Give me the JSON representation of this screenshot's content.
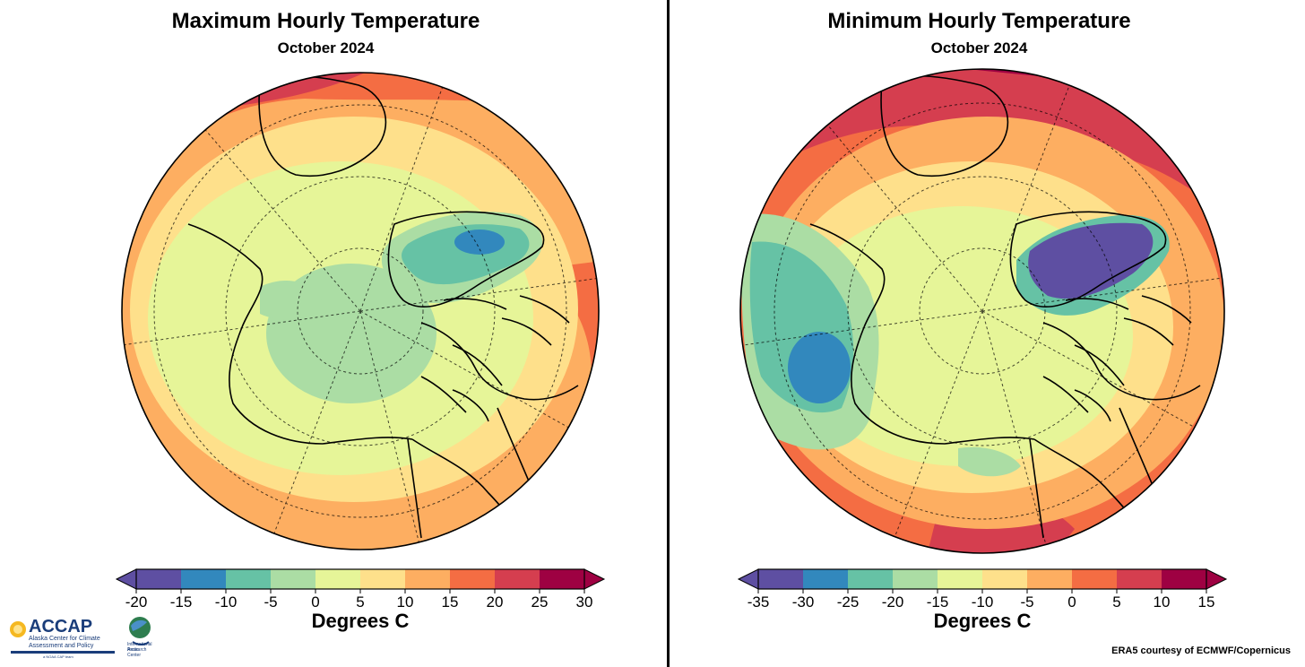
{
  "colors": {
    "scale": [
      "#5e4fa2",
      "#3288bd",
      "#66c2a5",
      "#abdda4",
      "#e6f598",
      "#fee08b",
      "#fdae61",
      "#f46d43",
      "#d53e4f",
      "#9e0142"
    ]
  },
  "panels": [
    {
      "title": "Maximum Hourly Temperature",
      "subtitle": "October 2024"
    },
    {
      "title": "Minimum Hourly Temperature",
      "subtitle": "October 2024"
    }
  ],
  "logo": {
    "name": "ACCAP",
    "line1": "Alaska Center for Climate",
    "line2": "Assessment and Policy",
    "line3": "a NOAA CAP team",
    "partner1": "International Arctic",
    "partner2": "Research Center"
  },
  "credit": "ERA5 courtesy of ECMWF/Copernicus",
  "chart_data": [
    {
      "type": "heatmap",
      "title": "Maximum Hourly Temperature",
      "subtitle": "October 2024",
      "colorbar": {
        "label": "Degrees C",
        "ticks": [
          -20,
          -15,
          -10,
          -5,
          0,
          5,
          10,
          15,
          20,
          25,
          30
        ],
        "tick_labels": [
          "-20",
          "-15",
          "-10",
          "-5",
          "0",
          "5",
          "10",
          "15",
          "20",
          "25",
          "30"
        ],
        "range": [
          -20,
          30
        ],
        "extend": "both"
      }
    },
    {
      "type": "heatmap",
      "title": "Minimum Hourly Temperature",
      "subtitle": "October 2024",
      "colorbar": {
        "label": "Degrees C",
        "ticks": [
          -35,
          -30,
          -25,
          -20,
          -15,
          -10,
          -5,
          0,
          5,
          10,
          15
        ],
        "tick_labels": [
          "-35",
          "-30",
          "-25",
          "-20",
          "-15",
          "-10",
          "-5",
          "0",
          "5",
          "10",
          "15"
        ],
        "range": [
          -35,
          15
        ],
        "extend": "both"
      }
    }
  ]
}
